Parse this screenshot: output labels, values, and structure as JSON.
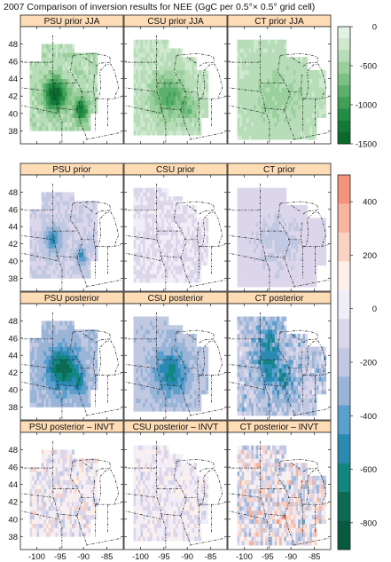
{
  "title": "2007 Comparison of inversion results for NEE  (GgC per 0.5°× 0.5° grid cell)",
  "chart_data": {
    "type": "heatmap",
    "x_ticks": [
      "-100",
      "-95",
      "-90",
      "-85"
    ],
    "y_ticks": [
      "38",
      "40",
      "42",
      "44",
      "46",
      "48"
    ],
    "x_values": [
      -100,
      -95,
      -90,
      -85
    ],
    "y_values": [
      38,
      40,
      42,
      44,
      46,
      48
    ],
    "xlim": [
      -103.5,
      -81.5
    ],
    "ylim": [
      36.5,
      50
    ],
    "top_colorbar": {
      "ticks": [
        "0",
        "-500",
        "-1000",
        "-1500"
      ],
      "values": [
        0,
        -500,
        -1000,
        -1500
      ],
      "range": [
        -1500,
        0
      ],
      "colors": [
        "#e3f3e3",
        "#cfe9cf",
        "#b6ddb7",
        "#9ad09d",
        "#7cc183",
        "#5cb06b",
        "#3fa056",
        "#248d45",
        "#127a37",
        "#0a6a2d"
      ]
    },
    "bottom_colorbar": {
      "ticks": [
        "400",
        "200",
        "0",
        "-200",
        "-400",
        "-600",
        "-800"
      ],
      "values": [
        400,
        200,
        0,
        -200,
        -400,
        -600,
        -800
      ],
      "range": [
        -900,
        500
      ],
      "colors": [
        "#f4937a",
        "#f8b49f",
        "#fbd3c4",
        "#fdf0ea",
        "#f2eef7",
        "#dcd6ea",
        "#c0c8e2",
        "#99b4d6",
        "#5b9fcd",
        "#2b8ab4",
        "#118580",
        "#0c6b53",
        "#075a40"
      ]
    },
    "panels": [
      {
        "label": "PSU prior JJA",
        "row": 0,
        "col": 0,
        "model": "psu",
        "scale": "top",
        "field": "prior_jja"
      },
      {
        "label": "CSU prior JJA",
        "row": 0,
        "col": 1,
        "model": "csu",
        "scale": "top",
        "field": "prior_jja"
      },
      {
        "label": "CT prior JJA",
        "row": 0,
        "col": 2,
        "model": "ct",
        "scale": "top",
        "field": "prior_jja"
      },
      {
        "label": "PSU prior",
        "row": 1,
        "col": 0,
        "model": "psu",
        "scale": "bottom",
        "field": "prior"
      },
      {
        "label": "CSU prior",
        "row": 1,
        "col": 1,
        "model": "csu",
        "scale": "bottom",
        "field": "prior"
      },
      {
        "label": "CT prior",
        "row": 1,
        "col": 2,
        "model": "ct",
        "scale": "bottom",
        "field": "prior"
      },
      {
        "label": "PSU posterior",
        "row": 2,
        "col": 0,
        "model": "psu",
        "scale": "bottom",
        "field": "posterior"
      },
      {
        "label": "CSU posterior",
        "row": 2,
        "col": 1,
        "model": "csu",
        "scale": "bottom",
        "field": "posterior"
      },
      {
        "label": "CT posterior",
        "row": 2,
        "col": 2,
        "model": "ct",
        "scale": "bottom",
        "field": "posterior"
      },
      {
        "label": "PSU posterior – INVT",
        "row": 3,
        "col": 0,
        "model": "psu",
        "scale": "bottom",
        "field": "diff"
      },
      {
        "label": "CSU posterior – INVT",
        "row": 3,
        "col": 1,
        "model": "csu",
        "scale": "bottom",
        "field": "diff"
      },
      {
        "label": "CT posterior – INVT",
        "row": 3,
        "col": 2,
        "model": "ct",
        "scale": "bottom",
        "field": "diff"
      }
    ]
  }
}
